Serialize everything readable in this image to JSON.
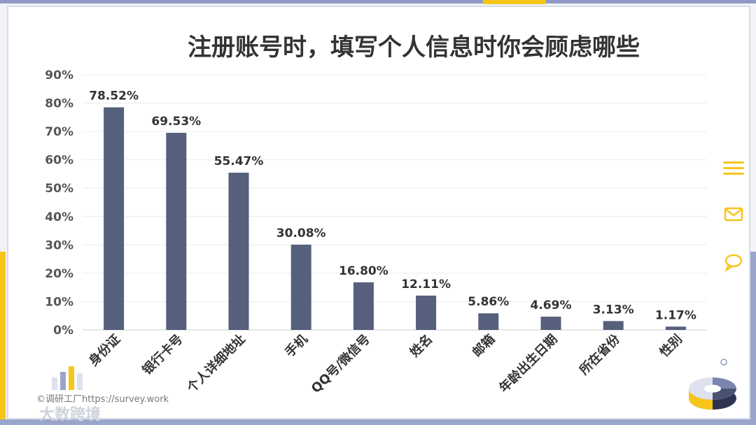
{
  "chart_data": {
    "type": "bar",
    "title": "注册账号时，填写个人信息时你会顾虑哪些",
    "categories": [
      "身份证",
      "银行卡号",
      "个人详细地址",
      "手机",
      "QQ号/微信号",
      "姓名",
      "邮箱",
      "年龄出生日期",
      "所在省份",
      "性别"
    ],
    "values": [
      78.52,
      69.53,
      55.47,
      30.08,
      16.8,
      12.11,
      5.86,
      4.69,
      3.13,
      1.17
    ],
    "data_labels": [
      "78.52%",
      "69.53%",
      "55.47%",
      "30.08%",
      "16.80%",
      "12.11%",
      "5.86%",
      "4.69%",
      "3.13%",
      "1.17%"
    ],
    "y_ticks": [
      "0%",
      "10%",
      "20%",
      "30%",
      "40%",
      "50%",
      "60%",
      "70%",
      "80%",
      "90%"
    ],
    "ylim": [
      0,
      90
    ],
    "xlabel": "",
    "ylabel": "",
    "grid": true,
    "bar_color": "#56607d"
  },
  "watermark": "©调研工厂https://survey.work",
  "logo": "大数跨境",
  "colors": {
    "accent_yellow": "#f8c51a",
    "frame_blue": "#9aa5cc"
  },
  "side_icons": [
    "menu-icon",
    "mail-icon",
    "chat-icon"
  ]
}
